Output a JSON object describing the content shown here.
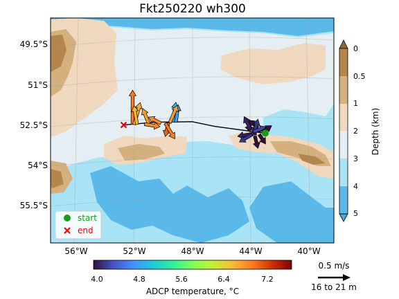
{
  "title": "Fkt250220 wh300",
  "map": {
    "lat_ticks": [
      "49.5°S",
      "51°S",
      "52.5°S",
      "54°S",
      "55.5°S"
    ],
    "lon_ticks": [
      "56°W",
      "52°W",
      "48°W",
      "44°W",
      "40°W"
    ],
    "lon_range": [
      -57.5,
      -38.5
    ],
    "lat_range": [
      -57.0,
      -48.8
    ],
    "projection": "conic (curved graticule)",
    "grid": true
  },
  "depth_colorbar": {
    "label": "Depth (km)",
    "ticks": [
      "0",
      "0.5",
      "1",
      "2",
      "3",
      "4",
      "5"
    ],
    "colors": {
      "0-0.5": "#b4864d",
      "0.5-1": "#d3b07d",
      "1-2": "#efd8bd",
      "2-3": "#e4eef3",
      "3-4": "#a8e3f6",
      "4-5": "#5ab9e8"
    }
  },
  "temp_colorbar": {
    "label": "ADCP temperature, °C",
    "ticks": [
      "4.0",
      "4.8",
      "5.6",
      "6.4",
      "7.2"
    ],
    "range": [
      4.0,
      7.6
    ]
  },
  "legend": {
    "start": "start",
    "end": "end",
    "start_color": "#1a9a1a",
    "end_color": "#ff0000"
  },
  "scale": {
    "speed": "0.5 m/s",
    "depth_range": "16 to 21 m"
  },
  "track": {
    "start": [
      -43.1,
      -53.0
    ],
    "end": [
      -52.6,
      -52.7
    ],
    "points": [
      [
        -43.1,
        -53.0
      ],
      [
        -46.5,
        -52.75
      ],
      [
        -48.0,
        -52.58
      ],
      [
        -50.5,
        -52.6
      ],
      [
        -52.6,
        -52.7
      ]
    ]
  },
  "vectors": [
    {
      "lon": -43.4,
      "lat": -52.9,
      "u": -0.25,
      "v": 0.05,
      "temp": 4.1
    },
    {
      "lon": -43.6,
      "lat": -52.8,
      "u": -0.15,
      "v": 0.12,
      "temp": 4.0
    },
    {
      "lon": -43.8,
      "lat": -52.9,
      "u": 0.05,
      "v": 0.18,
      "temp": 4.2
    },
    {
      "lon": -43.7,
      "lat": -53.0,
      "u": -0.3,
      "v": -0.05,
      "temp": 4.1
    },
    {
      "lon": -43.5,
      "lat": -53.05,
      "u": 0.1,
      "v": -0.15,
      "temp": 4.0
    },
    {
      "lon": -43.9,
      "lat": -52.95,
      "u": 0.2,
      "v": 0.08,
      "temp": 4.3
    },
    {
      "lon": -44.1,
      "lat": -52.85,
      "u": -0.1,
      "v": 0.2,
      "temp": 4.1
    },
    {
      "lon": -43.3,
      "lat": -52.95,
      "u": 0.15,
      "v": 0.1,
      "temp": 4.0
    },
    {
      "lon": -44.0,
      "lat": -53.05,
      "u": -0.2,
      "v": -0.12,
      "temp": 4.2
    },
    {
      "lon": -43.8,
      "lat": -53.1,
      "u": 0.05,
      "v": -0.2,
      "temp": 4.0
    },
    {
      "lon": -49.3,
      "lat": -52.6,
      "u": 0.05,
      "v": 0.32,
      "temp": 5.0
    },
    {
      "lon": -49.1,
      "lat": -52.6,
      "u": 0.04,
      "v": 0.28,
      "temp": 4.8
    },
    {
      "lon": -49.6,
      "lat": -52.62,
      "u": -0.05,
      "v": -0.22,
      "temp": 7.0
    },
    {
      "lon": -49.8,
      "lat": -52.64,
      "u": 0.15,
      "v": -0.25,
      "temp": 6.9
    },
    {
      "lon": -50.1,
      "lat": -52.64,
      "u": -0.2,
      "v": 0.1,
      "temp": 6.8
    },
    {
      "lon": -49.5,
      "lat": -52.62,
      "u": 0.12,
      "v": 0.28,
      "temp": 6.7
    },
    {
      "lon": -50.9,
      "lat": -52.67,
      "u": -0.1,
      "v": 0.25,
      "temp": 6.7
    },
    {
      "lon": -51.2,
      "lat": -52.67,
      "u": 0.25,
      "v": -0.04,
      "temp": 6.8
    },
    {
      "lon": -52.0,
      "lat": -52.68,
      "u": 0.0,
      "v": 0.55,
      "temp": 6.9
    },
    {
      "lon": -51.9,
      "lat": -52.68,
      "u": 0.1,
      "v": 0.35,
      "temp": 6.6
    },
    {
      "lon": -51.7,
      "lat": -52.68,
      "u": -0.05,
      "v": 0.3,
      "temp": 6.5
    }
  ]
}
